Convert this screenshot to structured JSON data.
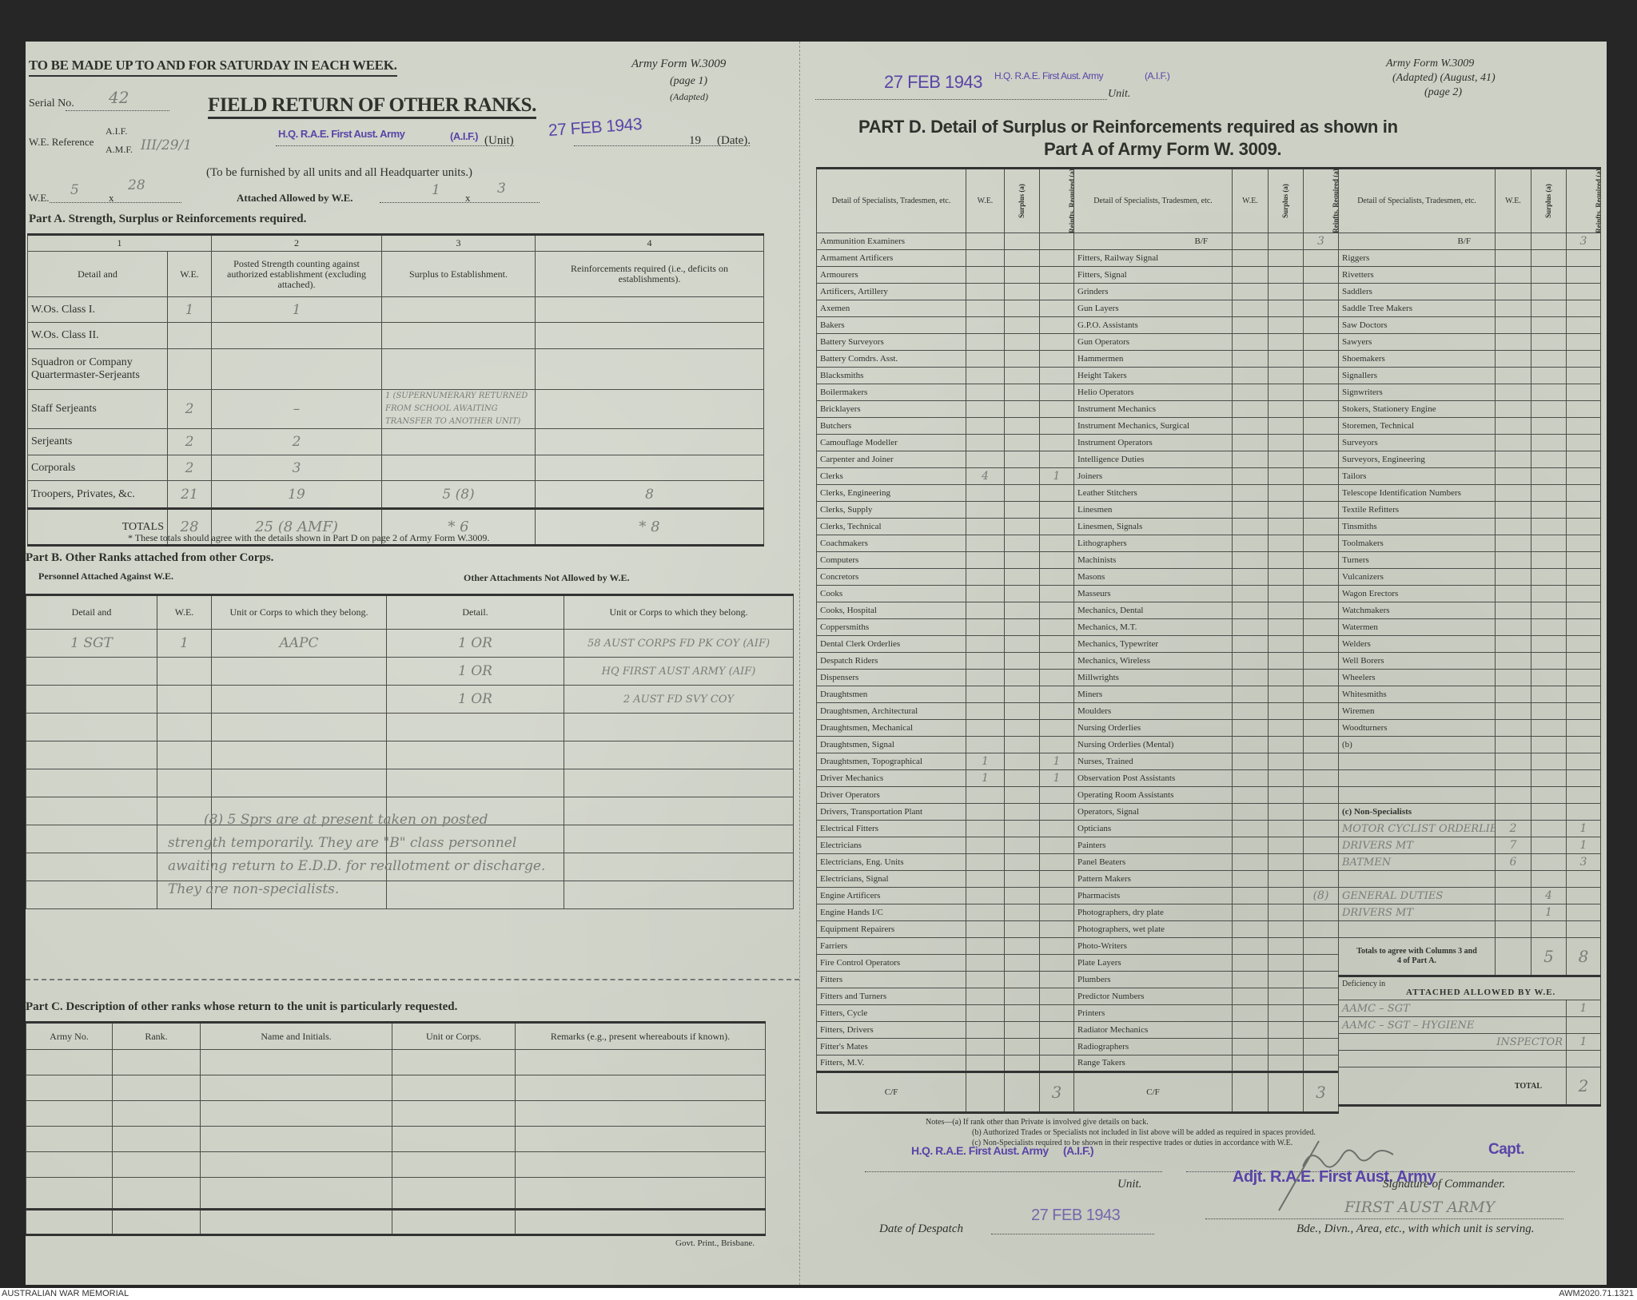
{
  "page1": {
    "top_note": "TO BE MADE UP TO AND FOR SATURDAY IN EACH WEEK.",
    "form_no": "Army Form W.3009",
    "form_page": "(page 1)",
    "form_adapted": "(Adapted)",
    "serial_label": "Serial No.",
    "serial_value": "42",
    "title": "FIELD RETURN OF OTHER RANKS.",
    "we_ref_label": "W.E. Reference",
    "aif_label": "A.I.F.",
    "amf_label": "A.M.F.",
    "amf_value": "III/29/1",
    "unit_stamp": "H.Q. R.A.E. First Aust. Army",
    "unit_stamp_aif": "(A.I.F.)",
    "unit_label": "(Unit)",
    "date_stamp": "27 FEB 1943",
    "year_prefix": "19",
    "date_label": "(Date).",
    "furnished_note": "(To be furnished by all units and all Headquarter units.)",
    "we_label": "W.E.",
    "we_a": "5",
    "we_x": "x",
    "we_b": "28",
    "attached_label": "Attached Allowed by W.E.",
    "att_a": "1",
    "att_x": "x",
    "att_b": "3",
    "part_a": {
      "title": "Part A.  Strength, Surplus or Reinforcements required.",
      "col_numbers": [
        "1",
        "2",
        "3",
        "4"
      ],
      "headers": [
        "Detail and",
        "W.E.",
        "Posted Strength counting against authorized establishment (excluding attached).",
        "Surplus to Establishment.",
        "Reinforcements required (i.e., deficits on establishments)."
      ],
      "rows": [
        {
          "detail": "W.Os. Class I.",
          "we": "1",
          "posted": "1",
          "surplus": "",
          "reinf": ""
        },
        {
          "detail": "W.Os. Class II.",
          "we": "",
          "posted": "",
          "surplus": "",
          "reinf": ""
        },
        {
          "detail": "Squadron or Company Quartermaster-Serjeants",
          "we": "",
          "posted": "",
          "surplus": "",
          "reinf": ""
        },
        {
          "detail": "Staff Serjeants",
          "we": "2",
          "posted": "–",
          "surplus": "1 (SUPERNUMERARY RETURNED FROM SCHOOL AWAITING TRANSFER TO ANOTHER UNIT)",
          "reinf": ""
        },
        {
          "detail": "Serjeants",
          "we": "2",
          "posted": "2",
          "surplus": "",
          "reinf": ""
        },
        {
          "detail": "Corporals",
          "we": "2",
          "posted": "3",
          "surplus": "",
          "reinf": ""
        },
        {
          "detail": "Troopers, Privates, &c.",
          "we": "21",
          "posted": "19",
          "surplus": "5 (8)",
          "reinf": "8"
        }
      ],
      "totals": {
        "label": "TOTALS",
        "we": "28",
        "posted": "25 (8 AMF)",
        "surplus": "* 6",
        "reinf": "* 8"
      },
      "footnote": "* These totals should agree with the details shown in Part D on page 2 of Army Form W.3009."
    },
    "part_b": {
      "title": "Part B.  Other Ranks attached from other Corps.",
      "sub_left": "Personnel Attached Against W.E.",
      "sub_right": "Other Attachments Not Allowed by W.E.",
      "headers": [
        "Detail and",
        "W.E.",
        "Unit or Corps to which they belong.",
        "Detail.",
        "Unit or Corps to which they belong."
      ],
      "rows": [
        [
          "1 SGT",
          "1",
          "AAPC",
          "1 OR",
          "58 AUST CORPS FD PK COY (AIF)"
        ],
        [
          "",
          "",
          "",
          "1 OR",
          "HQ FIRST AUST ARMY (AIF)"
        ],
        [
          "",
          "",
          "",
          "1 OR",
          "2 AUST FD SVY COY"
        ],
        [
          "",
          "",
          "",
          "",
          ""
        ],
        [
          "",
          "",
          "",
          "",
          ""
        ],
        [
          "",
          "",
          "",
          "",
          ""
        ],
        [
          "",
          "",
          "",
          "",
          ""
        ],
        [
          "",
          "",
          "",
          "",
          ""
        ],
        [
          "",
          "",
          "",
          "",
          ""
        ],
        [
          "",
          "",
          "",
          "",
          ""
        ]
      ],
      "note_lines": [
        "(8)  5 Sprs are at present taken on posted",
        "strength temporarily. They are \"B\" class personnel",
        "awaiting return to E.D.D. for reallotment or discharge.",
        "They are non-specialists."
      ]
    },
    "part_c": {
      "title": "Part C.  Description of other ranks whose return to the unit is particularly requested.",
      "headers": [
        "Army No.",
        "Rank.",
        "Name and Initials.",
        "Unit or Corps.",
        "Remarks (e.g., present whereabouts if known)."
      ]
    },
    "printer": "Govt. Print., Brisbane."
  },
  "page2": {
    "date_stamp": "27 FEB 1943",
    "unit_stamp": "H.Q. R.A.E. First Aust. Army",
    "unit_stamp_aif": "(A.I.F.)",
    "unit_label": "Unit.",
    "form_no": "Army Form W.3009",
    "form_adapted": "(Adapted) (August, 41)",
    "form_page": "(page 2)",
    "title_line1": "PART D.  Detail of Surplus or Reinforcements required as shown in",
    "title_line2": "Part A of Army Form W. 3009.",
    "headers": {
      "detail": "Detail of Specialists, Tradesmen, etc.",
      "we": "W.E.",
      "surplus": "Surplus (a)",
      "reinf": "Reinfts. Required (a)"
    },
    "col1": [
      [
        "Ammunition Examiners",
        "",
        "",
        ""
      ],
      [
        "Armament Artificers",
        "",
        "",
        ""
      ],
      [
        "Armourers",
        "",
        "",
        ""
      ],
      [
        "Artificers, Artillery",
        "",
        "",
        ""
      ],
      [
        "Axemen",
        "",
        "",
        ""
      ],
      [
        "Bakers",
        "",
        "",
        ""
      ],
      [
        "Battery Surveyors",
        "",
        "",
        ""
      ],
      [
        "Battery Comdrs. Asst.",
        "",
        "",
        ""
      ],
      [
        "Blacksmiths",
        "",
        "",
        ""
      ],
      [
        "Boilermakers",
        "",
        "",
        ""
      ],
      [
        "Bricklayers",
        "",
        "",
        ""
      ],
      [
        "Butchers",
        "",
        "",
        ""
      ],
      [
        "Camouflage Modeller",
        "",
        "",
        ""
      ],
      [
        "Carpenter and Joiner",
        "",
        "",
        ""
      ],
      [
        "Clerks",
        "4",
        "",
        "1"
      ],
      [
        "Clerks, Engineering",
        "",
        "",
        ""
      ],
      [
        "Clerks, Supply",
        "",
        "",
        ""
      ],
      [
        "Clerks, Technical",
        "",
        "",
        ""
      ],
      [
        "Coachmakers",
        "",
        "",
        ""
      ],
      [
        "Computers",
        "",
        "",
        ""
      ],
      [
        "Concretors",
        "",
        "",
        ""
      ],
      [
        "Cooks",
        "",
        "",
        ""
      ],
      [
        "Cooks, Hospital",
        "",
        "",
        ""
      ],
      [
        "Coppersmiths",
        "",
        "",
        ""
      ],
      [
        "Dental Clerk Orderlies",
        "",
        "",
        ""
      ],
      [
        "Despatch Riders",
        "",
        "",
        ""
      ],
      [
        "Dispensers",
        "",
        "",
        ""
      ],
      [
        "Draughtsmen",
        "",
        "",
        ""
      ],
      [
        "Draughtsmen, Architectural",
        "",
        "",
        ""
      ],
      [
        "Draughtsmen, Mechanical",
        "",
        "",
        ""
      ],
      [
        "Draughtsmen, Signal",
        "",
        "",
        ""
      ],
      [
        "Draughtsmen, Topographical",
        "1",
        "",
        "1"
      ],
      [
        "Driver Mechanics",
        "1",
        "",
        "1"
      ],
      [
        "Driver Operators",
        "",
        "",
        ""
      ],
      [
        "Drivers, Transportation Plant",
        "",
        "",
        ""
      ],
      [
        "Electrical Fitters",
        "",
        "",
        ""
      ],
      [
        "Electricians",
        "",
        "",
        ""
      ],
      [
        "Electricians, Eng. Units",
        "",
        "",
        ""
      ],
      [
        "Electricians, Signal",
        "",
        "",
        ""
      ],
      [
        "Engine Artificers",
        "",
        "",
        ""
      ],
      [
        "Engine Hands I/C",
        "",
        "",
        ""
      ],
      [
        "Equipment Repairers",
        "",
        "",
        ""
      ],
      [
        "Farriers",
        "",
        "",
        ""
      ],
      [
        "Fire Control Operators",
        "",
        "",
        ""
      ],
      [
        "Fitters",
        "",
        "",
        ""
      ],
      [
        "Fitters and Turners",
        "",
        "",
        ""
      ],
      [
        "Fitters, Cycle",
        "",
        "",
        ""
      ],
      [
        "Fitters, Drivers",
        "",
        "",
        ""
      ],
      [
        "Fitter's Mates",
        "",
        "",
        ""
      ],
      [
        "Fitters, M.V.",
        "",
        "",
        ""
      ]
    ],
    "col1_cf": [
      "C/F",
      "",
      "",
      "3"
    ],
    "col2": [
      [
        "B/F",
        "",
        "",
        "3"
      ],
      [
        "Fitters, Railway Signal",
        "",
        "",
        ""
      ],
      [
        "Fitters, Signal",
        "",
        "",
        ""
      ],
      [
        "Grinders",
        "",
        "",
        ""
      ],
      [
        "Gun Layers",
        "",
        "",
        ""
      ],
      [
        "G.P.O. Assistants",
        "",
        "",
        ""
      ],
      [
        "Gun Operators",
        "",
        "",
        ""
      ],
      [
        "Hammermen",
        "",
        "",
        ""
      ],
      [
        "Height Takers",
        "",
        "",
        ""
      ],
      [
        "Helio Operators",
        "",
        "",
        ""
      ],
      [
        "Instrument Mechanics",
        "",
        "",
        ""
      ],
      [
        "Instrument Mechanics, Surgical",
        "",
        "",
        ""
      ],
      [
        "Instrument Operators",
        "",
        "",
        ""
      ],
      [
        "Intelligence Duties",
        "",
        "",
        ""
      ],
      [
        "Joiners",
        "",
        "",
        ""
      ],
      [
        "Leather Stitchers",
        "",
        "",
        ""
      ],
      [
        "Linesmen",
        "",
        "",
        ""
      ],
      [
        "Linesmen, Signals",
        "",
        "",
        ""
      ],
      [
        "Lithographers",
        "",
        "",
        ""
      ],
      [
        "Machinists",
        "",
        "",
        ""
      ],
      [
        "Masons",
        "",
        "",
        ""
      ],
      [
        "Masseurs",
        "",
        "",
        ""
      ],
      [
        "Mechanics, Dental",
        "",
        "",
        ""
      ],
      [
        "Mechanics, M.T.",
        "",
        "",
        ""
      ],
      [
        "Mechanics, Typewriter",
        "",
        "",
        ""
      ],
      [
        "Mechanics, Wireless",
        "",
        "",
        ""
      ],
      [
        "Millwrights",
        "",
        "",
        ""
      ],
      [
        "Miners",
        "",
        "",
        ""
      ],
      [
        "Moulders",
        "",
        "",
        ""
      ],
      [
        "Nursing Orderlies",
        "",
        "",
        ""
      ],
      [
        "Nursing Orderlies (Mental)",
        "",
        "",
        ""
      ],
      [
        "Nurses, Trained",
        "",
        "",
        ""
      ],
      [
        "Observation Post Assistants",
        "",
        "",
        ""
      ],
      [
        "Operating Room Assistants",
        "",
        "",
        ""
      ],
      [
        "Operators, Signal",
        "",
        "",
        ""
      ],
      [
        "Opticians",
        "",
        "",
        ""
      ],
      [
        "Painters",
        "",
        "",
        ""
      ],
      [
        "Panel Beaters",
        "",
        "",
        ""
      ],
      [
        "Pattern Makers",
        "",
        "",
        ""
      ],
      [
        "Pharmacists",
        "",
        "",
        "(8)"
      ],
      [
        "Photographers, dry plate",
        "",
        "",
        ""
      ],
      [
        "Photographers, wet plate",
        "",
        "",
        ""
      ],
      [
        "Photo-Writers",
        "",
        "",
        ""
      ],
      [
        "Plate Layers",
        "",
        "",
        ""
      ],
      [
        "Plumbers",
        "",
        "",
        ""
      ],
      [
        "Predictor Numbers",
        "",
        "",
        ""
      ],
      [
        "Printers",
        "",
        "",
        ""
      ],
      [
        "Radiator Mechanics",
        "",
        "",
        ""
      ],
      [
        "Radiographers",
        "",
        "",
        ""
      ],
      [
        "Range Takers",
        "",
        "",
        ""
      ]
    ],
    "col2_cf": [
      "C/F",
      "",
      "",
      "3"
    ],
    "col3": [
      [
        "B/F",
        "",
        "",
        "3"
      ],
      [
        "Riggers",
        "",
        "",
        ""
      ],
      [
        "Rivetters",
        "",
        "",
        ""
      ],
      [
        "Saddlers",
        "",
        "",
        ""
      ],
      [
        "Saddle Tree Makers",
        "",
        "",
        ""
      ],
      [
        "Saw Doctors",
        "",
        "",
        ""
      ],
      [
        "Sawyers",
        "",
        "",
        ""
      ],
      [
        "Shoemakers",
        "",
        "",
        ""
      ],
      [
        "Signallers",
        "",
        "",
        ""
      ],
      [
        "Signwriters",
        "",
        "",
        ""
      ],
      [
        "Stokers, Stationery Engine",
        "",
        "",
        ""
      ],
      [
        "Storemen, Technical",
        "",
        "",
        ""
      ],
      [
        "Surveyors",
        "",
        "",
        ""
      ],
      [
        "Surveyors, Engineering",
        "",
        "",
        ""
      ],
      [
        "Tailors",
        "",
        "",
        ""
      ],
      [
        "Telescope Identification Numbers",
        "",
        "",
        ""
      ],
      [
        "Textile Refitters",
        "",
        "",
        ""
      ],
      [
        "Tinsmiths",
        "",
        "",
        ""
      ],
      [
        "Toolmakers",
        "",
        "",
        ""
      ],
      [
        "Turners",
        "",
        "",
        ""
      ],
      [
        "Vulcanizers",
        "",
        "",
        ""
      ],
      [
        "Wagon Erectors",
        "",
        "",
        ""
      ],
      [
        "Watchmakers",
        "",
        "",
        ""
      ],
      [
        "Watermen",
        "",
        "",
        ""
      ],
      [
        "Welders",
        "",
        "",
        ""
      ],
      [
        "Well Borers",
        "",
        "",
        ""
      ],
      [
        "Wheelers",
        "",
        "",
        ""
      ],
      [
        "Whitesmiths",
        "",
        "",
        ""
      ],
      [
        "Wiremen",
        "",
        "",
        ""
      ],
      [
        "Woodturners",
        "",
        "",
        ""
      ],
      [
        "(b)",
        "",
        "",
        ""
      ],
      [
        "",
        "",
        "",
        ""
      ],
      [
        "",
        "",
        "",
        ""
      ],
      [
        "",
        "",
        "",
        ""
      ],
      [
        "(c) Non-Specialists",
        "",
        "",
        ""
      ],
      [
        "MOTOR CYCLIST ORDERLIES",
        "2",
        "",
        "1"
      ],
      [
        "DRIVERS MT",
        "7",
        "",
        "1"
      ],
      [
        "BATMEN",
        "6",
        "",
        "3"
      ],
      [
        "",
        "",
        "",
        ""
      ],
      [
        "GENERAL DUTIES",
        "",
        "4",
        ""
      ],
      [
        "DRIVERS MT",
        "",
        "1",
        ""
      ],
      [
        "",
        "",
        "",
        ""
      ]
    ],
    "col3_totals": {
      "label": "Totals to agree with Columns 3 and 4 of Part A.",
      "surplus": "5",
      "reinf": "8"
    },
    "deficiency": {
      "label_small": "Deficiency in",
      "label": "ATTACHED ALLOWED BY W.E.",
      "rows": [
        [
          "AAMC – SGT",
          "1"
        ],
        [
          "AAMC – SGT – HYGIENE",
          ""
        ],
        [
          "INSPECTOR",
          "1"
        ],
        [
          "",
          ""
        ]
      ],
      "total_label": "TOTAL",
      "total": "2"
    },
    "notes": [
      "Notes—(a) If rank other than Private is involved give details on back.",
      "(b) Authorized Trades or Specialists not included in list above will be added as required in spaces provided.",
      "(c) Non-Specialists required to be shown in their respective trades or duties in accordance with W.E."
    ],
    "sign": {
      "unit_stamp": "H.Q. R.A.E. First Aust. Army",
      "unit_stamp_aif": "(A.I.F.)",
      "capt": "Capt.",
      "unit_label": "Unit.",
      "adjt_stamp": "Adjt. R.A.E. First Aust. Army",
      "signature_label": "Signature of Commander.",
      "formation": "FIRST AUST ARMY",
      "formation_label": "Bde., Divn., Area, etc., with which unit is serving.",
      "despatch_label": "Date of Despatch",
      "despatch_stamp": "27 FEB 1943"
    }
  },
  "footer": {
    "left": "AUSTRALIAN WAR MEMORIAL",
    "right": "AWM2020.71.1321"
  },
  "colors": {
    "paper": "#cdd1c5",
    "stamp": "#5a44a8",
    "ink": "#7a7d78"
  }
}
